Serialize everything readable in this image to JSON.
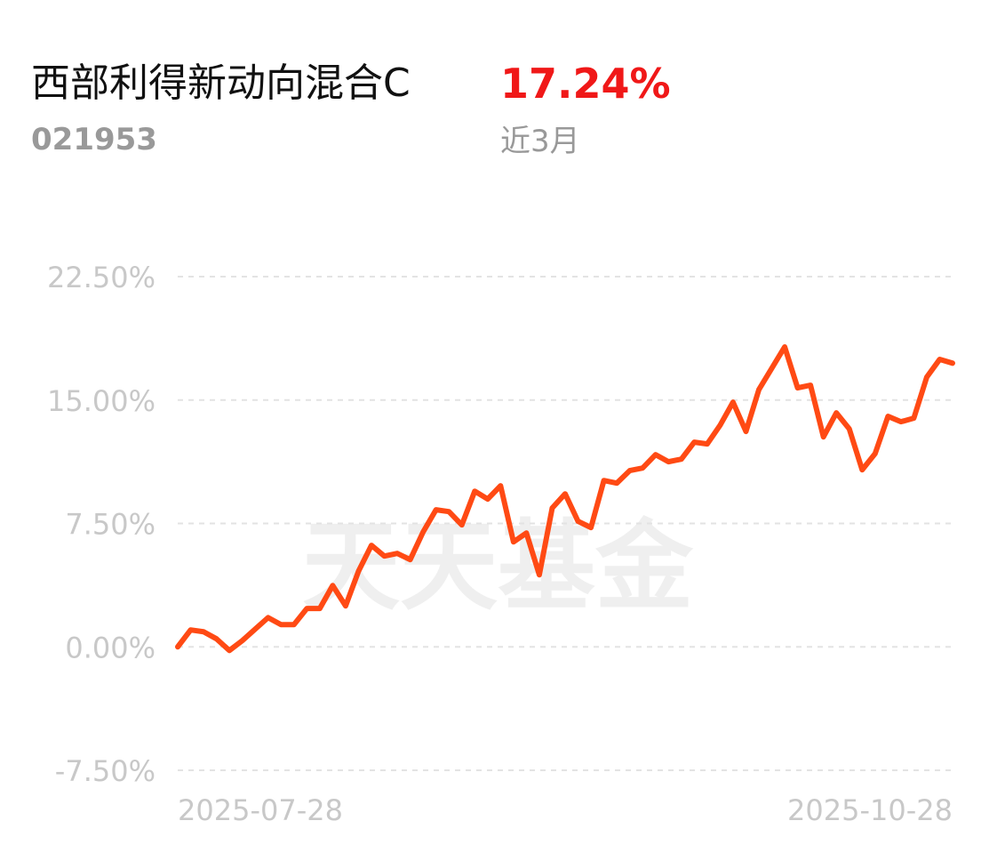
{
  "header": {
    "title": "西部利得新动向混合C",
    "code": "021953",
    "return": "17.24%",
    "period": "近3月"
  },
  "chart_data": {
    "type": "line",
    "watermark": "天天基金",
    "categories": [
      "2025-07-28",
      null,
      null,
      null,
      null,
      null,
      null,
      null,
      null,
      null,
      null,
      null,
      null,
      null,
      null,
      null,
      null,
      null,
      null,
      null,
      null,
      null,
      null,
      null,
      null,
      null,
      null,
      null,
      null,
      null,
      null,
      null,
      null,
      null,
      null,
      null,
      null,
      null,
      null,
      null,
      null,
      null,
      null,
      null,
      null,
      null,
      null,
      null,
      null,
      null,
      null,
      null,
      null,
      null,
      null,
      null,
      null,
      null,
      null,
      null,
      "2025-10-28"
    ],
    "series": [
      {
        "name": "西部利得新动向混合C",
        "color": "#ff4a14",
        "values": [
          0,
          1.03,
          0.92,
          0.49,
          -0.22,
          0.38,
          1.08,
          1.78,
          1.35,
          1.35,
          2.33,
          2.33,
          3.73,
          2.49,
          4.6,
          6.17,
          5.52,
          5.68,
          5.3,
          6.98,
          8.33,
          8.22,
          7.41,
          9.46,
          8.98,
          9.79,
          6.38,
          6.92,
          4.38,
          8.44,
          9.3,
          7.63,
          7.25,
          10.11,
          9.95,
          10.71,
          10.87,
          11.68,
          11.25,
          11.41,
          12.44,
          12.33,
          13.47,
          14.87,
          13.09,
          15.63,
          16.93,
          18.23,
          15.74,
          15.9,
          12.76,
          14.22,
          13.25,
          10.76,
          11.74,
          14.01,
          13.68,
          13.9,
          16.39,
          17.47,
          17.24
        ]
      }
    ],
    "ylim": [
      -7.5,
      22.5
    ],
    "yticks": [
      {
        "value": -7.5,
        "label": "-7.50%"
      },
      {
        "value": 0,
        "label": "0.00%"
      },
      {
        "value": 7.5,
        "label": "7.50%"
      },
      {
        "value": 15,
        "label": "15.00%"
      },
      {
        "value": 22.5,
        "label": "22.50%"
      }
    ],
    "grid": true
  }
}
